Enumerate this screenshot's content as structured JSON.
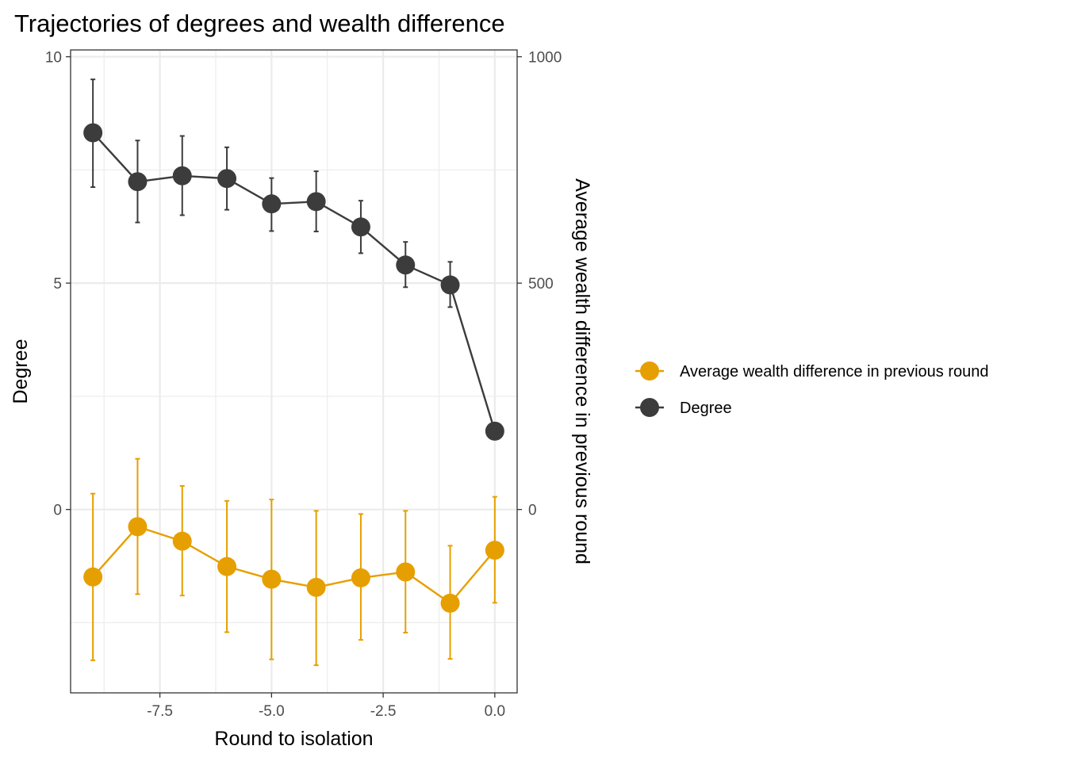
{
  "chart_data": {
    "type": "line",
    "title": "Trajectories of degrees and wealth difference",
    "xlabel": "Round to isolation",
    "ylabel": "Degree",
    "y2label": "Average wealth difference in previous round",
    "xlim": [
      -9.5,
      0.5
    ],
    "ylim": [
      -4.05,
      10.15
    ],
    "y2lim": [
      -405,
      1015
    ],
    "x_ticks": [
      -7.5,
      -5.0,
      -2.5,
      0.0
    ],
    "x_tick_labels": [
      "-7.5",
      "-5.0",
      "-2.5",
      "0.0"
    ],
    "y_ticks": [
      0,
      5,
      10
    ],
    "y_tick_labels": [
      "0",
      "5",
      "10"
    ],
    "y2_ticks": [
      0,
      500,
      1000
    ],
    "y2_tick_labels": [
      "0",
      "500",
      "1000"
    ],
    "grid": true,
    "legend_position": "right",
    "x": [
      -9,
      -8,
      -7,
      -6,
      -5,
      -4,
      -3,
      -2,
      -1,
      0
    ],
    "series": [
      {
        "name": "Average wealth difference in previous round",
        "axis": "right",
        "color": "#E69F00",
        "values": [
          -149,
          -38,
          -70,
          -126,
          -154,
          -172,
          -151,
          -138,
          -207,
          -90
        ],
        "error_lower": [
          -333,
          -187,
          -190,
          -271,
          -331,
          -344,
          -288,
          -272,
          -330,
          -206
        ],
        "error_upper": [
          35,
          112,
          52,
          19,
          22,
          -3,
          -10,
          -3,
          -80,
          28
        ]
      },
      {
        "name": "Degree",
        "axis": "left",
        "color": "#3C3C3C",
        "values": [
          8.32,
          7.24,
          7.37,
          7.31,
          6.75,
          6.8,
          6.24,
          5.4,
          4.96,
          1.73
        ],
        "error_lower": [
          7.12,
          6.34,
          6.5,
          6.62,
          6.15,
          6.14,
          5.66,
          4.91,
          4.47,
          1.73
        ],
        "error_upper": [
          9.5,
          8.15,
          8.25,
          8.0,
          7.32,
          7.47,
          6.82,
          5.91,
          5.47,
          1.73
        ]
      }
    ]
  }
}
